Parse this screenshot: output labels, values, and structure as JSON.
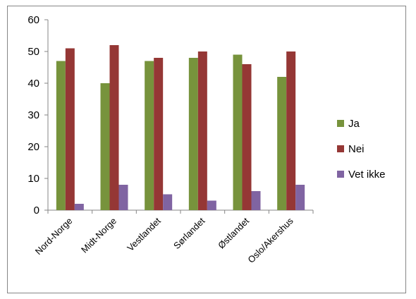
{
  "chart_data": {
    "type": "bar",
    "categories": [
      "Nord-Norge",
      "Midt-Norge",
      "Vestlandet",
      "Sørlandet",
      "Østlandet",
      "Oslo/Akershus"
    ],
    "series": [
      {
        "name": "Ja",
        "values": [
          47,
          40,
          47,
          48,
          49,
          42
        ],
        "color": "#77933C"
      },
      {
        "name": "Nei",
        "values": [
          51,
          52,
          48,
          50,
          46,
          50
        ],
        "color": "#953735"
      },
      {
        "name": "Vet ikke",
        "values": [
          2,
          8,
          5,
          3,
          6,
          8
        ],
        "color": "#8064A2"
      }
    ],
    "yticks": [
      "0",
      "10",
      "20",
      "30",
      "40",
      "50",
      "60"
    ],
    "ylim": [
      0,
      60
    ],
    "grid": false,
    "legend_position": "right",
    "title": "",
    "xlabel": "",
    "ylabel": ""
  }
}
